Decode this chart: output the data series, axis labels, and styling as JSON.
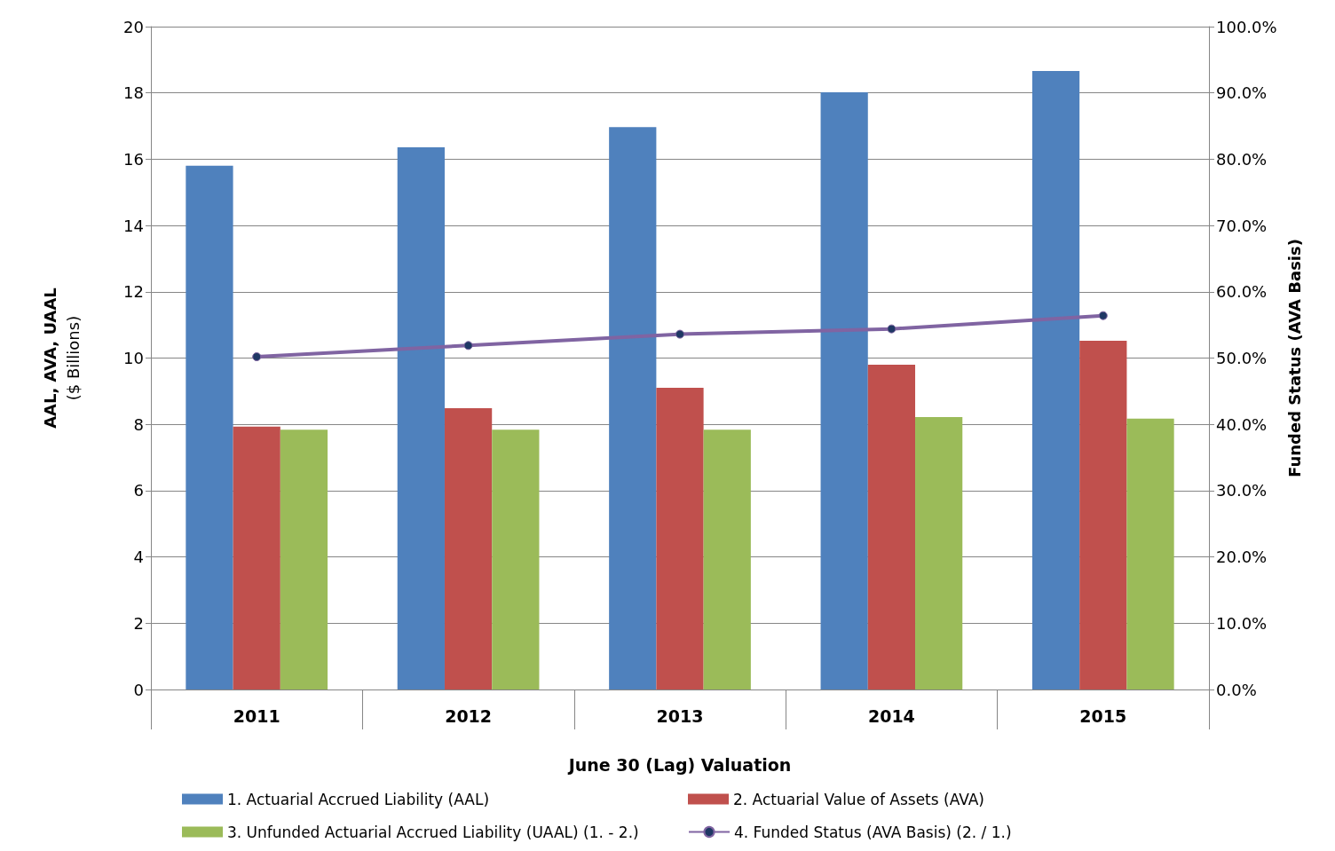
{
  "chart_data": {
    "type": "bar",
    "xlabel": "June 30 (Lag) Valuation",
    "ylabel": "AAL, AVA, UAAL\n($ Billions)",
    "y2label": "Funded Status (AVA Basis)",
    "categories": [
      "2011",
      "2012",
      "2013",
      "2014",
      "2015"
    ],
    "series": [
      {
        "name": "1. Actuarial Accrued Liability (AAL)",
        "color": "#4f81bd",
        "values": [
          15.8,
          16.36,
          16.97,
          18.02,
          18.66
        ]
      },
      {
        "name": "2. Actuarial Value of Assets (AVA)",
        "color": "#c0504d",
        "values": [
          7.93,
          8.49,
          9.1,
          9.8,
          10.52
        ]
      },
      {
        "name": "3. Unfunded Actuarial Accrued Liability (UAAL) (1. - 2.)",
        "color": "#9bbb59",
        "values": [
          7.84,
          7.84,
          7.84,
          8.22,
          8.17
        ]
      },
      {
        "name": "4. Funded Status (AVA Basis) (2. / 1.)",
        "type": "line",
        "axis": "y2",
        "color": "#8064a2",
        "marker": "circle",
        "values": [
          50.2,
          51.9,
          53.6,
          54.4,
          56.4
        ]
      }
    ],
    "ylim": [
      0,
      20
    ],
    "yticks": [
      0,
      2,
      4,
      6,
      8,
      10,
      12,
      14,
      16,
      18,
      20
    ],
    "y2lim": [
      0,
      100
    ],
    "y2ticks": [
      {
        "value": 0,
        "label": "0.0%"
      },
      {
        "value": 10,
        "label": "10.0%"
      },
      {
        "value": 20,
        "label": "20.0%"
      },
      {
        "value": 30,
        "label": "30.0%"
      },
      {
        "value": 40,
        "label": "40.0%"
      },
      {
        "value": 50,
        "label": "50.0%"
      },
      {
        "value": 60,
        "label": "60.0%"
      },
      {
        "value": 70,
        "label": "70.0%"
      },
      {
        "value": 80,
        "label": "80.0%"
      },
      {
        "value": 90,
        "label": "90.0%"
      },
      {
        "value": 100,
        "label": "100.0%"
      }
    ],
    "grid": "y",
    "legend": "bottom"
  }
}
